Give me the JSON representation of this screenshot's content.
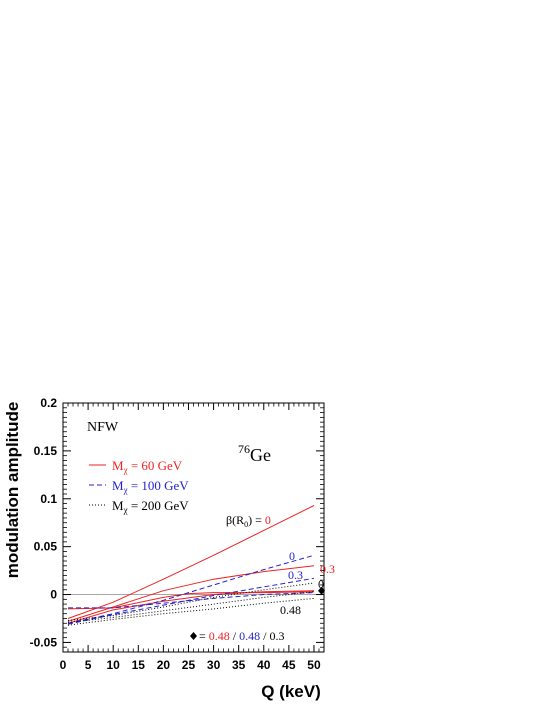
{
  "chart_data": {
    "type": "line",
    "xlabel": "Q (keV)",
    "ylabel": "modulation amplitude",
    "xlim": [
      0,
      52
    ],
    "ylim": [
      -0.06,
      0.2
    ],
    "x_ticks": [
      "0",
      "5",
      "10",
      "15",
      "20",
      "25",
      "30",
      "35",
      "40",
      "45",
      "50"
    ],
    "y_ticks": [
      "-0.05",
      "0",
      "0.05",
      "0.1",
      "0.15",
      "0.2"
    ],
    "grid": false,
    "zero_line": true,
    "colors": {
      "m60": "#ee2222",
      "m100": "#2222cc",
      "m200": "#000000"
    },
    "annotations": {
      "halo": "NFW",
      "isotope_sup": "76",
      "isotope": "Ge",
      "beta_prefix": "β(R",
      "beta_sub": "0",
      "beta_suffix": ") = ",
      "beta_value": "0",
      "footer_sep1": " = ",
      "footer_v1": "0.48",
      "footer_sep2": " / ",
      "footer_v2": "0.48",
      "footer_sep3": " / ",
      "footer_v3": "0.3"
    },
    "legend": [
      {
        "label_main": "M",
        "label_sub": "χ",
        "label_rest": " = 60 GeV",
        "color": "#ee2222",
        "dash": "solid"
      },
      {
        "label_main": "M",
        "label_sub": "χ",
        "label_rest": " = 100 GeV",
        "color": "#2222cc",
        "dash": "dashed"
      },
      {
        "label_main": "M",
        "label_sub": "χ",
        "label_rest": " = 200 GeV",
        "color": "#000000",
        "dash": "dotted"
      }
    ],
    "series": [
      {
        "group": "m60",
        "beta": "0",
        "label": "",
        "color": "#ee2222",
        "dash": "solid",
        "x": [
          1,
          10,
          20,
          30,
          40,
          50
        ],
        "y": [
          -0.025,
          -0.008,
          0.016,
          0.041,
          0.067,
          0.093
        ]
      },
      {
        "group": "m60",
        "beta": "0.3",
        "label": "0.3",
        "color": "#ee2222",
        "dash": "solid",
        "x": [
          1,
          10,
          20,
          30,
          40,
          50
        ],
        "y": [
          -0.028,
          -0.013,
          0.004,
          0.016,
          0.024,
          0.03
        ]
      },
      {
        "group": "m60",
        "beta": "0.48",
        "label": "",
        "color": "#ee2222",
        "dash": "solid",
        "x": [
          1,
          10,
          20,
          30,
          40,
          50
        ],
        "y": [
          -0.03,
          -0.016,
          -0.007,
          0.0,
          0.003,
          0.004
        ]
      },
      {
        "group": "m60",
        "beta": "0.48 point",
        "label": "",
        "color": "#ee2222",
        "dash": "solid",
        "x": [
          1,
          10,
          20,
          25,
          30,
          40,
          50
        ],
        "y": [
          -0.015,
          -0.014,
          -0.003,
          0.001,
          0.002,
          0.002,
          0.003
        ]
      },
      {
        "group": "m100",
        "beta": "0",
        "label": "0",
        "color": "#2222cc",
        "dash": "dashed",
        "x": [
          1,
          10,
          20,
          30,
          40,
          50
        ],
        "y": [
          -0.03,
          -0.02,
          -0.006,
          0.01,
          0.026,
          0.041
        ]
      },
      {
        "group": "m100",
        "beta": "0.3",
        "label": "0.3",
        "color": "#2222cc",
        "dash": "dashed",
        "x": [
          1,
          10,
          20,
          30,
          40,
          50
        ],
        "y": [
          -0.031,
          -0.021,
          -0.011,
          -0.001,
          0.008,
          0.017
        ]
      },
      {
        "group": "m100",
        "beta": "0.48",
        "label": "",
        "color": "#2222cc",
        "dash": "dashed",
        "x": [
          1,
          10,
          20,
          30,
          40,
          50
        ],
        "y": [
          -0.014,
          -0.014,
          -0.009,
          -0.004,
          0.0,
          0.002
        ]
      },
      {
        "group": "m200",
        "beta": "0",
        "label": "0",
        "color": "#000000",
        "dash": "dotted",
        "x": [
          1,
          10,
          20,
          30,
          40,
          50
        ],
        "y": [
          -0.027,
          -0.022,
          -0.013,
          -0.003,
          0.005,
          0.012
        ]
      },
      {
        "group": "m200",
        "beta": "0.48",
        "label": "0.48",
        "color": "#000000",
        "dash": "dotted",
        "x": [
          1,
          10,
          20,
          30,
          40,
          50
        ],
        "y": [
          -0.032,
          -0.026,
          -0.02,
          -0.015,
          -0.009,
          -0.004
        ]
      },
      {
        "group": "m200",
        "beta": "0.3",
        "label": "",
        "color": "#000000",
        "dash": "dotted",
        "x": [
          1,
          10,
          20,
          30,
          40,
          50
        ],
        "y": [
          -0.029,
          -0.024,
          -0.017,
          -0.01,
          -0.003,
          0.003
        ]
      }
    ],
    "marker": {
      "symbol": "diamond",
      "x": 51.5,
      "y": 0.004
    }
  }
}
